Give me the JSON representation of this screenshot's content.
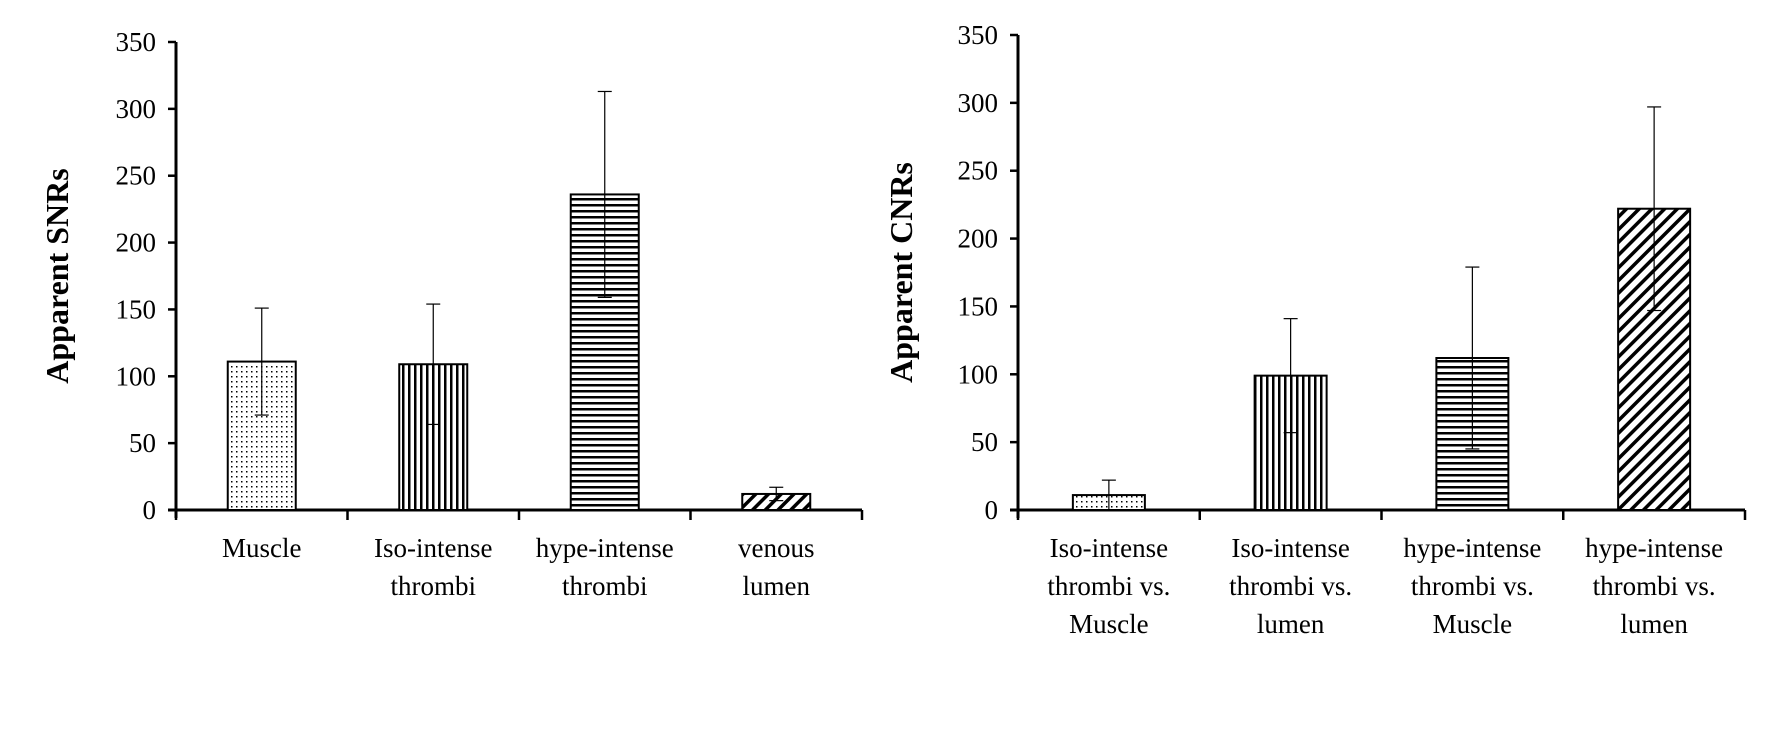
{
  "chart_data": [
    {
      "type": "bar",
      "ylabel": "Apparent SNRs",
      "ylim": [
        0,
        350
      ],
      "yticks": [
        0,
        50,
        100,
        150,
        200,
        250,
        300,
        350
      ],
      "categories": [
        [
          "Muscle"
        ],
        [
          "Iso-intense",
          "thrombi"
        ],
        [
          "hype-intense",
          "thrombi"
        ],
        [
          "venous",
          "lumen"
        ]
      ],
      "values": [
        111,
        109,
        236,
        12
      ],
      "errors": [
        40,
        45,
        77,
        5
      ],
      "patterns": [
        "dots",
        "vertical",
        "horizontal",
        "diagonal"
      ]
    },
    {
      "type": "bar",
      "ylabel": "Apparent CNRs",
      "ylim": [
        0,
        350
      ],
      "yticks": [
        0,
        50,
        100,
        150,
        200,
        250,
        300,
        350
      ],
      "categories": [
        [
          "Iso-intense",
          "thrombi vs.",
          "Muscle"
        ],
        [
          "Iso-intense",
          "thrombi vs.",
          "lumen"
        ],
        [
          "hype-intense",
          "thrombi vs.",
          "Muscle"
        ],
        [
          "hype-intense",
          "thrombi vs.",
          "lumen"
        ]
      ],
      "values": [
        11,
        99,
        112,
        222
      ],
      "errors": [
        11,
        42,
        67,
        75
      ],
      "patterns": [
        "dots",
        "vertical",
        "horizontal",
        "diagonal"
      ]
    }
  ]
}
